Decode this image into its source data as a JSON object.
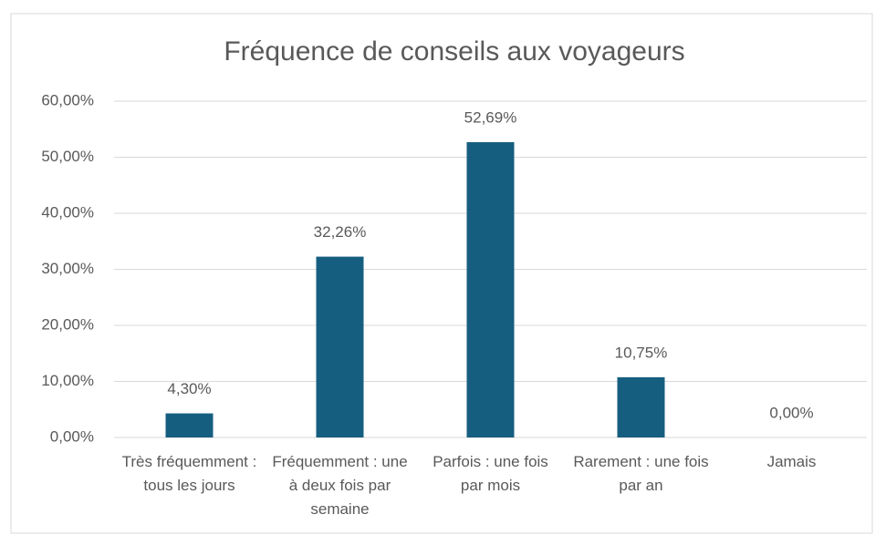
{
  "chart_data": {
    "type": "bar",
    "title": "Fréquence de conseils aux voyageurs",
    "categories": [
      "Très fréquemment : tous les jours",
      "Fréquemment : une à deux fois par semaine",
      "Parfois : une fois par mois",
      "Rarement : une fois par an",
      "Jamais"
    ],
    "values": [
      4.3,
      32.26,
      52.69,
      10.75,
      0.0
    ],
    "value_labels": [
      "4,30%",
      "32,26%",
      "52,69%",
      "10,75%",
      "0,00%"
    ],
    "color": "#165e80",
    "ylim": [
      0,
      60
    ],
    "yticks": [
      {
        "value": 0,
        "label": "0,00%"
      },
      {
        "value": 10,
        "label": "10,00%"
      },
      {
        "value": 20,
        "label": "20,00%"
      },
      {
        "value": 30,
        "label": "30,00%"
      },
      {
        "value": 40,
        "label": "40,00%"
      },
      {
        "value": 50,
        "label": "50,00%"
      },
      {
        "value": 60,
        "label": "60,00%"
      }
    ],
    "grid": true
  }
}
